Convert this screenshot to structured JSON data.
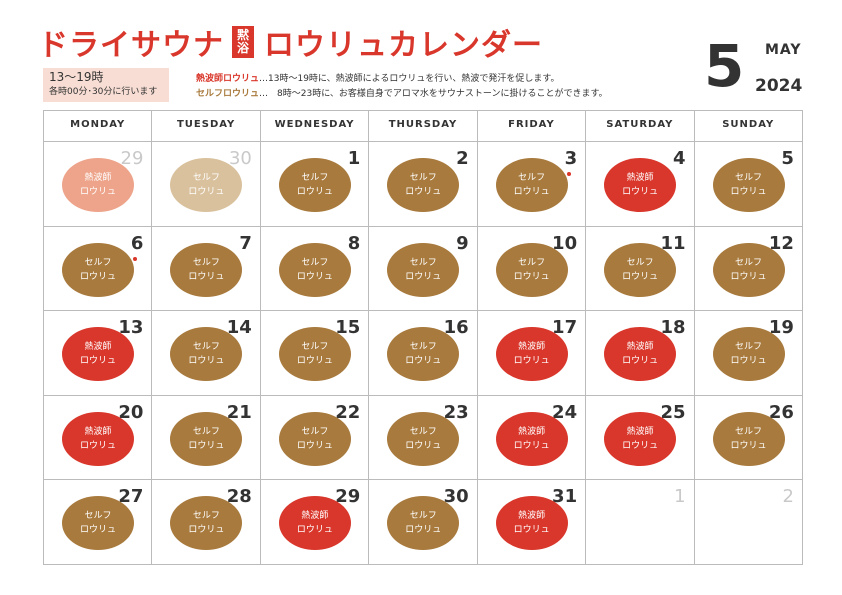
{
  "header": {
    "title_left": "ドライサウナ",
    "badge_top": "黙",
    "badge_bottom": "浴",
    "title_right": "ロウリュカレンダー",
    "month_number": "5",
    "month_name": "MAY",
    "year": "2024"
  },
  "hours": {
    "line1": "13〜19時",
    "line2": "各時00分･30分に行います"
  },
  "legend": {
    "nepashi_label": "熱波師ロウリュ",
    "nepashi_desc": "…13時〜19時に、熱波師によるロウリュを行い、熱波で発汗を促します。",
    "self_label": "セルフロウリュ",
    "self_desc": "…　8時〜23時に、お客様自身でアロマ水をサウナストーンに掛けることができます。"
  },
  "weekdays": [
    "MONDAY",
    "TUESDAY",
    "WEDNESDAY",
    "THURSDAY",
    "FRIDAY",
    "SATURDAY",
    "SUNDAY"
  ],
  "labels": {
    "self_line1": "セルフ",
    "nepashi_line1": "熱波師",
    "line2": "ロウリュ"
  },
  "colors": {
    "accent_red": "#d9372b",
    "self_brown": "#a87a3d",
    "faded_brown": "#d9c19d",
    "faded_red": "#eda48a"
  },
  "days": [
    {
      "day": "29",
      "other": true,
      "type": "nepa",
      "faded": true
    },
    {
      "day": "30",
      "other": true,
      "type": "self",
      "faded": true
    },
    {
      "day": "1",
      "type": "self"
    },
    {
      "day": "2",
      "type": "self"
    },
    {
      "day": "3",
      "type": "self",
      "dot": true
    },
    {
      "day": "4",
      "type": "nepa"
    },
    {
      "day": "5",
      "type": "self"
    },
    {
      "day": "6",
      "type": "self",
      "dot": true
    },
    {
      "day": "7",
      "type": "self"
    },
    {
      "day": "8",
      "type": "self"
    },
    {
      "day": "9",
      "type": "self"
    },
    {
      "day": "10",
      "type": "self"
    },
    {
      "day": "11",
      "type": "self"
    },
    {
      "day": "12",
      "type": "self"
    },
    {
      "day": "13",
      "type": "nepa"
    },
    {
      "day": "14",
      "type": "self"
    },
    {
      "day": "15",
      "type": "self"
    },
    {
      "day": "16",
      "type": "self"
    },
    {
      "day": "17",
      "type": "nepa"
    },
    {
      "day": "18",
      "type": "nepa"
    },
    {
      "day": "19",
      "type": "self"
    },
    {
      "day": "20",
      "type": "nepa"
    },
    {
      "day": "21",
      "type": "self"
    },
    {
      "day": "22",
      "type": "self"
    },
    {
      "day": "23",
      "type": "self"
    },
    {
      "day": "24",
      "type": "nepa"
    },
    {
      "day": "25",
      "type": "nepa"
    },
    {
      "day": "26",
      "type": "self"
    },
    {
      "day": "27",
      "type": "self"
    },
    {
      "day": "28",
      "type": "self"
    },
    {
      "day": "29",
      "type": "nepa"
    },
    {
      "day": "30",
      "type": "self"
    },
    {
      "day": "31",
      "type": "nepa"
    },
    {
      "day": "1",
      "other": true,
      "type": "none"
    },
    {
      "day": "2",
      "other": true,
      "type": "none"
    }
  ]
}
